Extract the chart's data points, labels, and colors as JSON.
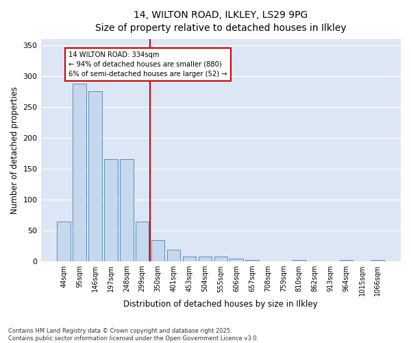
{
  "title_line1": "14, WILTON ROAD, ILKLEY, LS29 9PG",
  "title_line2": "Size of property relative to detached houses in Ilkley",
  "xlabel": "Distribution of detached houses by size in Ilkley",
  "ylabel": "Number of detached properties",
  "categories": [
    "44sqm",
    "95sqm",
    "146sqm",
    "197sqm",
    "248sqm",
    "299sqm",
    "350sqm",
    "401sqm",
    "453sqm",
    "504sqm",
    "555sqm",
    "606sqm",
    "657sqm",
    "708sqm",
    "759sqm",
    "810sqm",
    "862sqm",
    "913sqm",
    "964sqm",
    "1015sqm",
    "1066sqm"
  ],
  "values": [
    65,
    287,
    275,
    165,
    165,
    65,
    35,
    19,
    8,
    8,
    8,
    5,
    3,
    0,
    0,
    2,
    0,
    0,
    2,
    0,
    2
  ],
  "bar_color": "#c5d8ed",
  "bar_edge_color": "#5b8db8",
  "vline_color": "#cc0000",
  "annotation_text": "14 WILTON ROAD: 334sqm\n← 94% of detached houses are smaller (880)\n6% of semi-detached houses are larger (52) →",
  "annotation_box_color": "#cc0000",
  "ylim": [
    0,
    360
  ],
  "yticks": [
    0,
    50,
    100,
    150,
    200,
    250,
    300,
    350
  ],
  "background_color": "#dce6f5",
  "grid_color": "#ffffff",
  "footer_text": "Contains HM Land Registry data © Crown copyright and database right 2025.\nContains public sector information licensed under the Open Government Licence v3.0.",
  "fig_width": 6.0,
  "fig_height": 5.0,
  "dpi": 100
}
